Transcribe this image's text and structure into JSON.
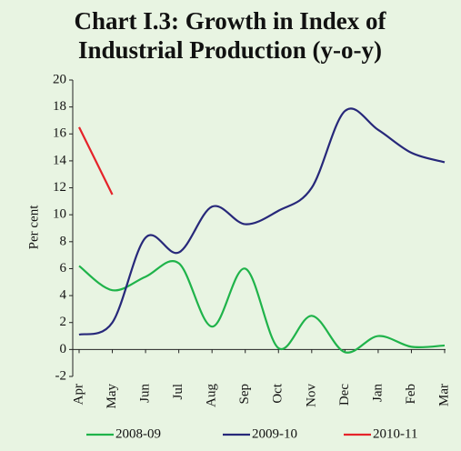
{
  "chart_data": {
    "type": "line",
    "title": [
      "Chart I.3: Growth in Index of",
      "Industrial Production (y-o-y)"
    ],
    "y_label": "Per cent",
    "categories": [
      "Apr",
      "May",
      "Jun",
      "Jul",
      "Aug",
      "Sep",
      "Oct",
      "Nov",
      "Dec",
      "Jan",
      "Feb",
      "Mar"
    ],
    "series": [
      {
        "name": "2008-09",
        "color": "#1fb34a",
        "values": [
          6.2,
          4.4,
          5.4,
          6.4,
          1.7,
          6.0,
          0.1,
          2.5,
          -0.2,
          1.0,
          0.2,
          0.3
        ]
      },
      {
        "name": "2009-10",
        "color": "#27287a",
        "values": [
          1.1,
          2.0,
          8.3,
          7.2,
          10.6,
          9.3,
          10.3,
          12.0,
          17.7,
          16.3,
          14.6,
          13.9
        ]
      },
      {
        "name": "2010-11",
        "color": "#e5232a",
        "values": [
          16.5,
          11.5,
          null,
          null,
          null,
          null,
          null,
          null,
          null,
          null,
          null,
          null
        ]
      }
    ],
    "ylim": [
      -2,
      20
    ],
    "yticks": [
      -2,
      0,
      2,
      4,
      6,
      8,
      10,
      12,
      14,
      16,
      18,
      20
    ],
    "background": "#e8f4e2"
  }
}
